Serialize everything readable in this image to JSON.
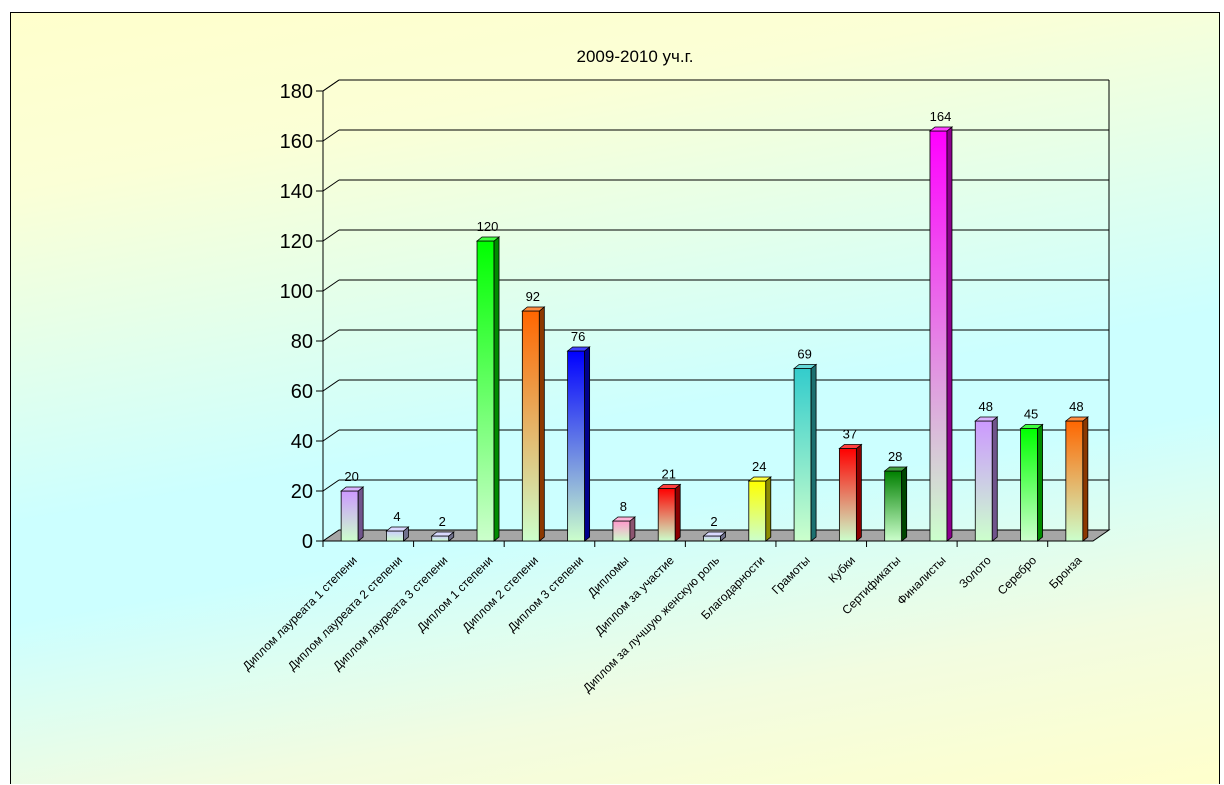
{
  "chart_data": {
    "type": "bar",
    "title": "2009-2010 уч.г.",
    "xlabel": "",
    "ylabel": "",
    "ylim": [
      0,
      180
    ],
    "y_ticks": [
      0,
      20,
      40,
      60,
      80,
      100,
      120,
      140,
      160,
      180
    ],
    "grid": true,
    "categories": [
      "Диплом лауреата 1 степени",
      "Диплом лауреата 2 степени",
      "Диплом лауреата 3 степени",
      "Диплом 1 степени",
      "Диплом 2 степени",
      "Диплом 3 степени",
      "Дипломы",
      "Диплом за участие",
      "Диплом за лучшую женскую роль",
      "Благодарности",
      "Грамоты",
      "Кубки",
      "Сертификаты",
      "Финалисты",
      "Золото",
      "Серебро",
      "Бронза"
    ],
    "values": [
      20,
      4,
      2,
      120,
      92,
      76,
      8,
      21,
      2,
      24,
      69,
      37,
      28,
      164,
      48,
      45,
      48
    ],
    "bar_colors": [
      "#cc99ff",
      "#ccccff",
      "#ccccff",
      "#00ff00",
      "#ff6600",
      "#0000ff",
      "#ff99cc",
      "#ff0000",
      "#ccccff",
      "#ffff00",
      "#33cccc",
      "#ff0000",
      "#008000",
      "#ff00ff",
      "#cc99ff",
      "#00ff00",
      "#ff6600"
    ],
    "bar_base_color": "#ccffcc"
  }
}
